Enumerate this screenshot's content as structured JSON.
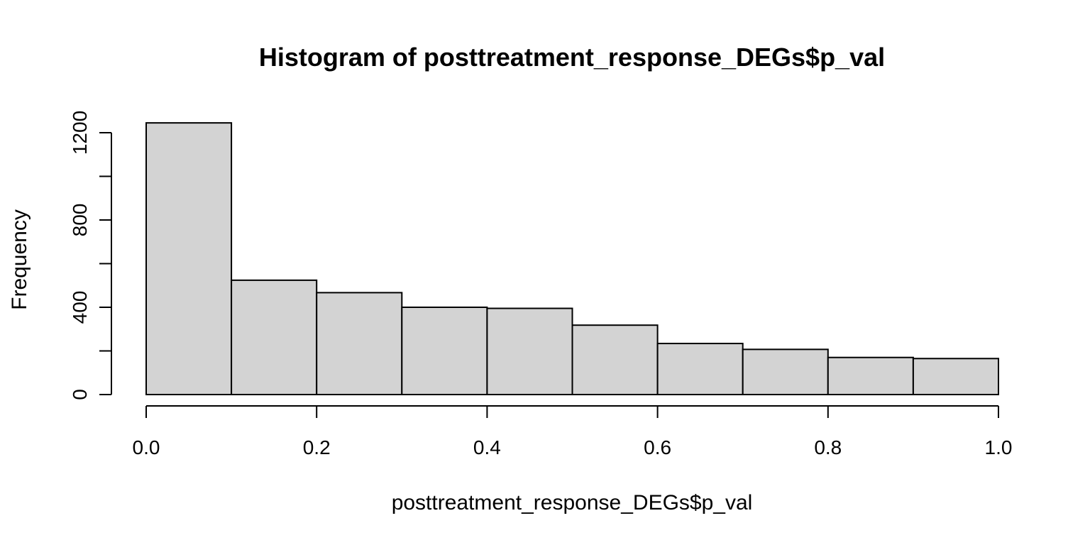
{
  "chart_data": {
    "type": "bar",
    "title": "Histogram of posttreatment_response_DEGs$p_val",
    "xlabel": "posttreatment_response_DEGs$p_val",
    "ylabel": "Frequency",
    "bins": [
      [
        0.0,
        0.1
      ],
      [
        0.1,
        0.2
      ],
      [
        0.2,
        0.3
      ],
      [
        0.3,
        0.4
      ],
      [
        0.4,
        0.5
      ],
      [
        0.5,
        0.6
      ],
      [
        0.6,
        0.7
      ],
      [
        0.7,
        0.8
      ],
      [
        0.8,
        0.9
      ],
      [
        0.9,
        1.0
      ]
    ],
    "values": [
      1245,
      524,
      467,
      400,
      395,
      318,
      234,
      207,
      170,
      165
    ],
    "xlim": [
      0.0,
      1.0
    ],
    "ylim": [
      0,
      1200
    ],
    "x_ticks": [
      0.0,
      0.2,
      0.4,
      0.6,
      0.8,
      1.0
    ],
    "x_tick_labels": [
      "0.0",
      "0.2",
      "0.4",
      "0.6",
      "0.8",
      "1.0"
    ],
    "y_ticks": [
      0,
      200,
      400,
      600,
      800,
      1000,
      1200
    ],
    "y_tick_labels": [
      "0",
      "",
      "400",
      "",
      "800",
      "",
      "1200"
    ],
    "grid": false,
    "colors": {
      "bar_fill": "#d3d3d3",
      "bar_stroke": "#000000"
    }
  }
}
